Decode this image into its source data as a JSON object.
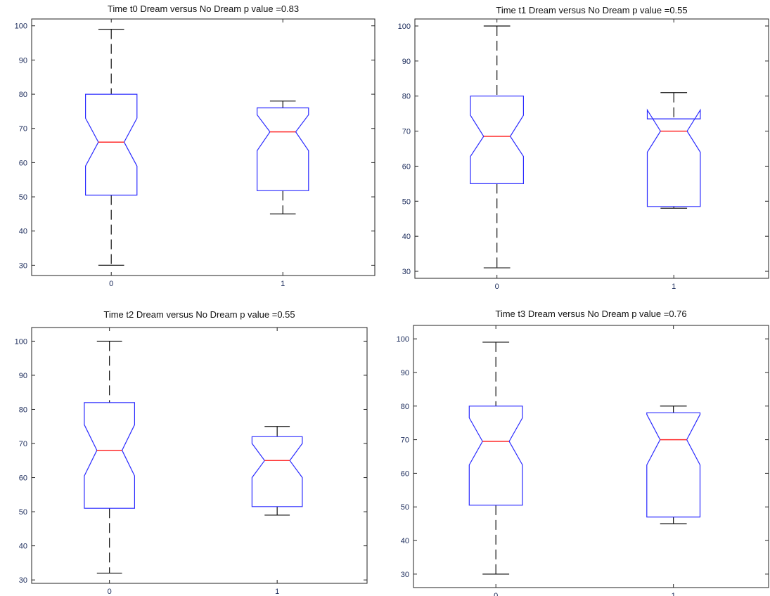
{
  "chart_data": [
    {
      "type": "boxplot",
      "title": "Time t0 Dream versus No Dream p value =0.83",
      "categories": [
        "0",
        "1"
      ],
      "ylim": [
        27,
        102
      ],
      "yticks": [
        30,
        40,
        50,
        60,
        70,
        80,
        90,
        100
      ],
      "notched": true,
      "boxes": [
        {
          "category": "0",
          "whisker_low": 30,
          "q1": 50.5,
          "notch_low": 59,
          "median": 66,
          "notch_high": 73,
          "q3": 80,
          "whisker_high": 99
        },
        {
          "category": "1",
          "whisker_low": 45,
          "q1": 51.8,
          "notch_low": 63.5,
          "median": 69,
          "notch_high": 74,
          "q3": 76,
          "whisker_high": 78
        }
      ]
    },
    {
      "type": "boxplot",
      "title": "Time t1 Dream versus No Dream p value =0.55",
      "categories": [
        "0",
        "1"
      ],
      "ylim": [
        28,
        102
      ],
      "yticks": [
        30,
        40,
        50,
        60,
        70,
        80,
        90,
        100
      ],
      "notched": true,
      "boxes": [
        {
          "category": "0",
          "whisker_low": 31,
          "q1": 55,
          "notch_low": 62.8,
          "median": 68.5,
          "notch_high": 74.5,
          "q3": 80,
          "whisker_high": 100
        },
        {
          "category": "1",
          "whisker_low": 48,
          "q1": 48.5,
          "notch_low": 64,
          "median": 70,
          "notch_high": 76,
          "q3": 73.5,
          "whisker_high": 81
        }
      ]
    },
    {
      "type": "boxplot",
      "title": "Time t2 Dream versus No Dream p value =0.55",
      "categories": [
        "0",
        "1"
      ],
      "ylim": [
        29,
        104
      ],
      "yticks": [
        30,
        40,
        50,
        60,
        70,
        80,
        90,
        100
      ],
      "notched": true,
      "boxes": [
        {
          "category": "0",
          "whisker_low": 32,
          "q1": 51,
          "notch_low": 60.5,
          "median": 68,
          "notch_high": 75.5,
          "q3": 82,
          "whisker_high": 100
        },
        {
          "category": "1",
          "whisker_low": 49,
          "q1": 51.5,
          "notch_low": 60,
          "median": 65,
          "notch_high": 70,
          "q3": 72,
          "whisker_high": 75
        }
      ]
    },
    {
      "type": "boxplot",
      "title": "Time t3 Dream versus No Dream p value =0.76",
      "categories": [
        "0",
        "1"
      ],
      "ylim": [
        26,
        104
      ],
      "yticks": [
        30,
        40,
        50,
        60,
        70,
        80,
        90,
        100
      ],
      "notched": true,
      "boxes": [
        {
          "category": "0",
          "whisker_low": 30,
          "q1": 50.5,
          "notch_low": 62.5,
          "median": 69.5,
          "notch_high": 76.5,
          "q3": 80,
          "whisker_high": 99
        },
        {
          "category": "1",
          "whisker_low": 45,
          "q1": 47,
          "notch_low": 62.5,
          "median": 70,
          "notch_high": 77.5,
          "q3": 78,
          "whisker_high": 80
        }
      ]
    }
  ],
  "colors": {
    "box": "#2a2aff",
    "median": "#ff2a2a",
    "whisker": "#111111",
    "axes": "#222222",
    "tick_label": "#1a2a5a"
  }
}
